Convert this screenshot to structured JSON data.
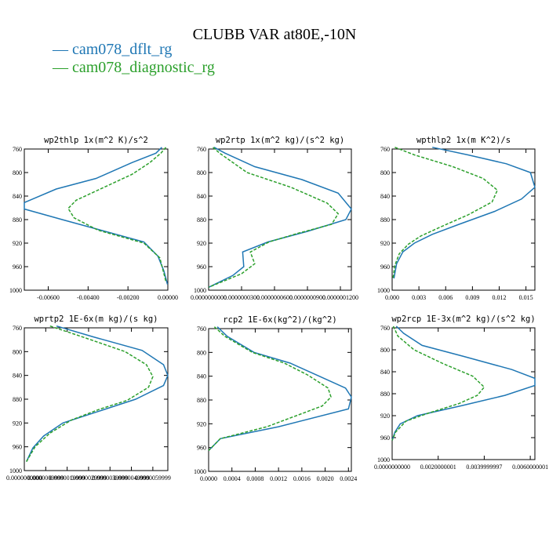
{
  "figure": {
    "title": "CLUBB VAR at80E,-10N",
    "legend": [
      {
        "label": "cam078_dflt_rg",
        "color": "#1f77b4",
        "dash": "solid"
      },
      {
        "label": "cam078_diagnostic_rg",
        "color": "#2ca02c",
        "dash": "dashed"
      }
    ]
  },
  "chart_data": [
    {
      "type": "line",
      "title": "wp2thlp  1x(m^2 K)/s^2",
      "xlim": [
        -0.0072,
        0.0
      ],
      "ylim": [
        760,
        1000
      ],
      "y_inverted": true,
      "xticks": [
        -0.006,
        -0.004,
        -0.002,
        0.0
      ],
      "xtick_labels": [
        "-0.00600",
        "-0.00400",
        "-0.00200",
        "0.00000"
      ],
      "yticks": [
        760,
        800,
        840,
        880,
        920,
        960,
        1000
      ],
      "ytick_labels": [
        "760",
        "800",
        "840",
        "880",
        "920",
        "960",
        "1000"
      ],
      "series": [
        {
          "name": "cam078_dflt_rg",
          "color": "#1f77b4",
          "dash": "solid",
          "x": [
            -0.0003,
            -0.0006,
            -0.0018,
            -0.0036,
            -0.0056,
            -0.0072,
            -0.0072,
            -0.0053,
            -0.0012,
            -0.0005,
            -0.0002,
            -2e-05
          ],
          "y": [
            757,
            767,
            783,
            810,
            828,
            851,
            862,
            880,
            918,
            942,
            967,
            990
          ]
        },
        {
          "name": "cam078_diagnostic_rg",
          "color": "#2ca02c",
          "dash": "dashed",
          "x": [
            -0.0001,
            -0.00035,
            -0.0009,
            -0.0018,
            -0.0032,
            -0.0046,
            -0.005,
            -0.0047,
            -0.0035,
            -0.0012,
            -0.0004,
            -0.0001
          ],
          "y": [
            757,
            767,
            783,
            803,
            825,
            847,
            861,
            877,
            898,
            920,
            945,
            985
          ]
        }
      ]
    },
    {
      "type": "line",
      "title": "wp2rtp  1x(m^2 kg)/(s^2 kg)",
      "xlim": [
        0.0,
        1.3e-07
      ],
      "ylim": [
        760,
        1000
      ],
      "y_inverted": true,
      "xticks": [
        0.0,
        3e-08,
        6e-08,
        9e-08,
        1.2e-07
      ],
      "xtick_labels": [
        "0.0000000000",
        "0.0000000300",
        "0.0000000600",
        "0.0000000900",
        "0.0000001200"
      ],
      "yticks": [
        760,
        800,
        840,
        880,
        920,
        960,
        1000
      ],
      "ytick_labels": [
        "760",
        "800",
        "840",
        "880",
        "920",
        "960",
        "1000"
      ],
      "series": [
        {
          "name": "cam078_dflt_rg",
          "color": "#1f77b4",
          "dash": "solid",
          "x": [
            5e-09,
            1.5e-08,
            4.2e-08,
            8.5e-08,
            1.18e-07,
            1.3e-07,
            1.25e-07,
            9e-08,
            5.4e-08,
            3.1e-08,
            3.2e-08,
            2.2e-08,
            0.0
          ],
          "y": [
            757,
            767,
            790,
            812,
            835,
            862,
            880,
            900,
            918,
            935,
            960,
            975,
            995
          ]
        },
        {
          "name": "cam078_diagnostic_rg",
          "color": "#2ca02c",
          "dash": "dashed",
          "x": [
            4e-09,
            1e-08,
            3.5e-08,
            7.5e-08,
            1.08e-07,
            1.18e-07,
            1.12e-07,
            8e-08,
            5.5e-08,
            3.8e-08,
            4.2e-08,
            3e-08,
            0.0
          ],
          "y": [
            757,
            767,
            800,
            825,
            852,
            870,
            888,
            904,
            918,
            935,
            955,
            972,
            995
          ]
        }
      ]
    },
    {
      "type": "line",
      "title": "wpthlp2  1x(m K^2)/s",
      "xlim": [
        0.0,
        0.016
      ],
      "ylim": [
        760,
        1000
      ],
      "y_inverted": true,
      "xticks": [
        0.0,
        0.003,
        0.006,
        0.009,
        0.012,
        0.015
      ],
      "xtick_labels": [
        "0.000",
        "0.003",
        "0.006",
        "0.009",
        "0.012",
        "0.015"
      ],
      "yticks": [
        760,
        800,
        840,
        880,
        920,
        960,
        1000
      ],
      "ytick_labels": [
        "760",
        "800",
        "840",
        "880",
        "920",
        "960",
        "1000"
      ],
      "series": [
        {
          "name": "cam078_dflt_rg",
          "color": "#1f77b4",
          "dash": "solid",
          "x": [
            0.0045,
            0.0085,
            0.0128,
            0.0155,
            0.016,
            0.0145,
            0.0115,
            0.0075,
            0.0045,
            0.0025,
            0.0012,
            0.0005,
            0.0002
          ],
          "y": [
            757,
            770,
            785,
            800,
            825,
            845,
            866,
            888,
            905,
            920,
            935,
            955,
            980
          ]
        },
        {
          "name": "cam078_diagnostic_rg",
          "color": "#2ca02c",
          "dash": "dashed",
          "x": [
            0.0003,
            0.0025,
            0.0068,
            0.0102,
            0.0118,
            0.0112,
            0.0085,
            0.0055,
            0.0032,
            0.0018,
            0.0008,
            0.0003,
            0.0001
          ],
          "y": [
            757,
            770,
            790,
            810,
            830,
            850,
            872,
            892,
            908,
            922,
            938,
            958,
            980
          ]
        }
      ]
    },
    {
      "type": "line",
      "title": "wprtp2  1E-6x(m kg)/(s kg)",
      "xlim": [
        0.0,
        6.7e-06
      ],
      "ylim": [
        760,
        1000
      ],
      "y_inverted": true,
      "xticks": [
        0.0,
        9.999e-07,
        1.9999e-06,
        2.9999e-06,
        3.9999e-06,
        4.9999e-06,
        5.9999e-06
      ],
      "xtick_labels": [
        "0.0000000000",
        "0.0000009999",
        "0.0000019999",
        "0.0000029999",
        "0.0000039999",
        "0.0000049999",
        "0.0000059999"
      ],
      "yticks": [
        760,
        800,
        840,
        880,
        920,
        960,
        1000
      ],
      "ytick_labels": [
        "760",
        "800",
        "840",
        "880",
        "920",
        "960",
        "1000"
      ],
      "series": [
        {
          "name": "cam078_dflt_rg",
          "color": "#1f77b4",
          "dash": "solid",
          "x": [
            1.5e-06,
            3.2e-06,
            5.5e-06,
            6.5e-06,
            6.7e-06,
            6.5e-06,
            5.2e-06,
            3.5e-06,
            1.8e-06,
            9e-07,
            4e-07,
            1e-07
          ],
          "y": [
            757,
            775,
            798,
            822,
            840,
            857,
            880,
            900,
            920,
            942,
            962,
            985
          ]
        },
        {
          "name": "cam078_diagnostic_rg",
          "color": "#2ca02c",
          "dash": "dashed",
          "x": [
            1.2e-06,
            2.7e-06,
            4.7e-06,
            5.7e-06,
            6e-06,
            5.8e-06,
            4.8e-06,
            3.5e-06,
            2.2e-06,
            1.2e-06,
            5e-07,
            1e-07
          ],
          "y": [
            757,
            775,
            800,
            822,
            842,
            860,
            882,
            897,
            915,
            937,
            960,
            985
          ]
        }
      ]
    },
    {
      "type": "line",
      "title": "rcp2  1E-6x(kg^2)/(kg^2)",
      "xlim": [
        0.0,
        0.00245
      ],
      "ylim": [
        760,
        1000
      ],
      "y_inverted": true,
      "xticks": [
        0.0,
        0.0004,
        0.0008,
        0.0012,
        0.0016,
        0.002,
        0.0024
      ],
      "xtick_labels": [
        "0.0000",
        "0.0004",
        "0.0008",
        "0.0012",
        "0.0016",
        "0.0020",
        "0.0024"
      ],
      "yticks": [
        760,
        800,
        840,
        880,
        920,
        960,
        1000
      ],
      "ytick_labels": [
        "760",
        "800",
        "840",
        "880",
        "920",
        "960",
        "1000"
      ],
      "series": [
        {
          "name": "cam078_dflt_rg",
          "color": "#1f77b4",
          "dash": "solid",
          "x": [
            0.00015,
            0.00032,
            0.00078,
            0.0014,
            0.0019,
            0.00235,
            0.00245,
            0.0024,
            0.0012,
            0.0002,
            0.0
          ],
          "y": [
            757,
            773,
            800,
            818,
            840,
            860,
            875,
            895,
            925,
            945,
            965
          ]
        },
        {
          "name": "cam078_diagnostic_rg",
          "color": "#2ca02c",
          "dash": "dashed",
          "x": [
            0.0001,
            0.00028,
            0.00075,
            0.0013,
            0.0017,
            0.00205,
            0.0021,
            0.00195,
            0.001,
            0.0002,
            0.0
          ],
          "y": [
            757,
            773,
            800,
            818,
            838,
            860,
            875,
            890,
            925,
            945,
            965
          ]
        }
      ]
    },
    {
      "type": "line",
      "title": "wp2rcp  1E-3x(m^2 kg)/(s^2 kg)",
      "xlim": [
        0.0,
        0.0062
      ],
      "ylim": [
        760,
        1000
      ],
      "y_inverted": true,
      "xticks": [
        0.0,
        0.0020000001,
        0.0039999997,
        0.0060000001
      ],
      "xtick_labels": [
        "0.0000000000",
        "0.0020000001",
        "0.0039999997",
        "0.0060000001"
      ],
      "yticks": [
        760,
        800,
        840,
        880,
        920,
        960
      ],
      "ytick_labels": [
        "760",
        "800",
        "840",
        "880",
        "920",
        "960"
      ],
      "extra_ytick_labels": [
        "1000"
      ],
      "series": [
        {
          "name": "cam078_dflt_rg",
          "color": "#1f77b4",
          "dash": "solid",
          "x": [
            0.00018,
            0.0005,
            0.0013,
            0.0031,
            0.0052,
            0.0062,
            0.0062,
            0.0049,
            0.003,
            0.0011,
            0.00035,
            0.00012,
            0.0
          ],
          "y": [
            757,
            770,
            792,
            812,
            836,
            852,
            865,
            883,
            902,
            920,
            935,
            950,
            965
          ]
        },
        {
          "name": "cam078_diagnostic_rg",
          "color": "#2ca02c",
          "dash": "dashed",
          "x": [
            5e-05,
            0.00025,
            0.00095,
            0.0022,
            0.0035,
            0.004,
            0.0037,
            0.0029,
            0.0016,
            0.0006,
            0.00015,
            0.0
          ],
          "y": [
            757,
            775,
            800,
            825,
            848,
            868,
            883,
            898,
            915,
            930,
            950,
            965
          ]
        }
      ]
    }
  ]
}
